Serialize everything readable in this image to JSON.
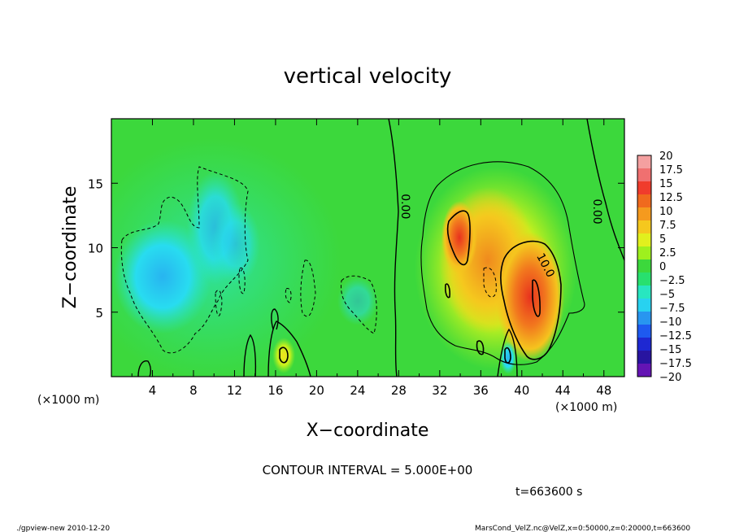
{
  "chart_data": {
    "type": "heatmap",
    "title": "vertical velocity",
    "xlabel": "X−coordinate",
    "ylabel": "Z−coordinate",
    "x_unit_left": "(×1000 m)",
    "x_unit_right": "(×1000 m)",
    "xlim": [
      0,
      50
    ],
    "ylim": [
      0,
      20
    ],
    "x_ticks": [
      4,
      8,
      12,
      16,
      20,
      24,
      28,
      32,
      36,
      40,
      44,
      48
    ],
    "y_ticks": [
      5,
      10,
      15
    ],
    "colorbar": {
      "labels": [
        "20",
        "17.5",
        "15",
        "12.5",
        "10",
        "7.5",
        "5",
        "2.5",
        "0",
        "−2.5",
        "−5",
        "−7.5",
        "−10",
        "−12.5",
        "−15",
        "−17.5",
        "−20"
      ],
      "colors": [
        "#f4a0a0",
        "#f07070",
        "#f03c2c",
        "#f06a1e",
        "#f59a1e",
        "#f5c81e",
        "#e1f01e",
        "#9ef01e",
        "#3cd83c",
        "#28e06e",
        "#28e6c0",
        "#28d2f0",
        "#2896f0",
        "#1e5af0",
        "#1e28d2",
        "#2814a0",
        "#6414b4"
      ]
    },
    "contour_labels": [
      {
        "text": "0.00",
        "x": 28.3,
        "z": 13.2
      },
      {
        "text": "0.00",
        "x": 47.0,
        "z": 12.8
      },
      {
        "text": "10.0",
        "x": 42.0,
        "z": 8.5
      }
    ],
    "contour_interval": "CONTOUR INTERVAL = 5.000E+00",
    "time": "t=663600 s",
    "footer_left": "./gpview-new  2010-12-20",
    "footer_right": "MarsCond_VelZ.nc@VelZ,x=0:50000,z=0:20000,t=663600"
  }
}
